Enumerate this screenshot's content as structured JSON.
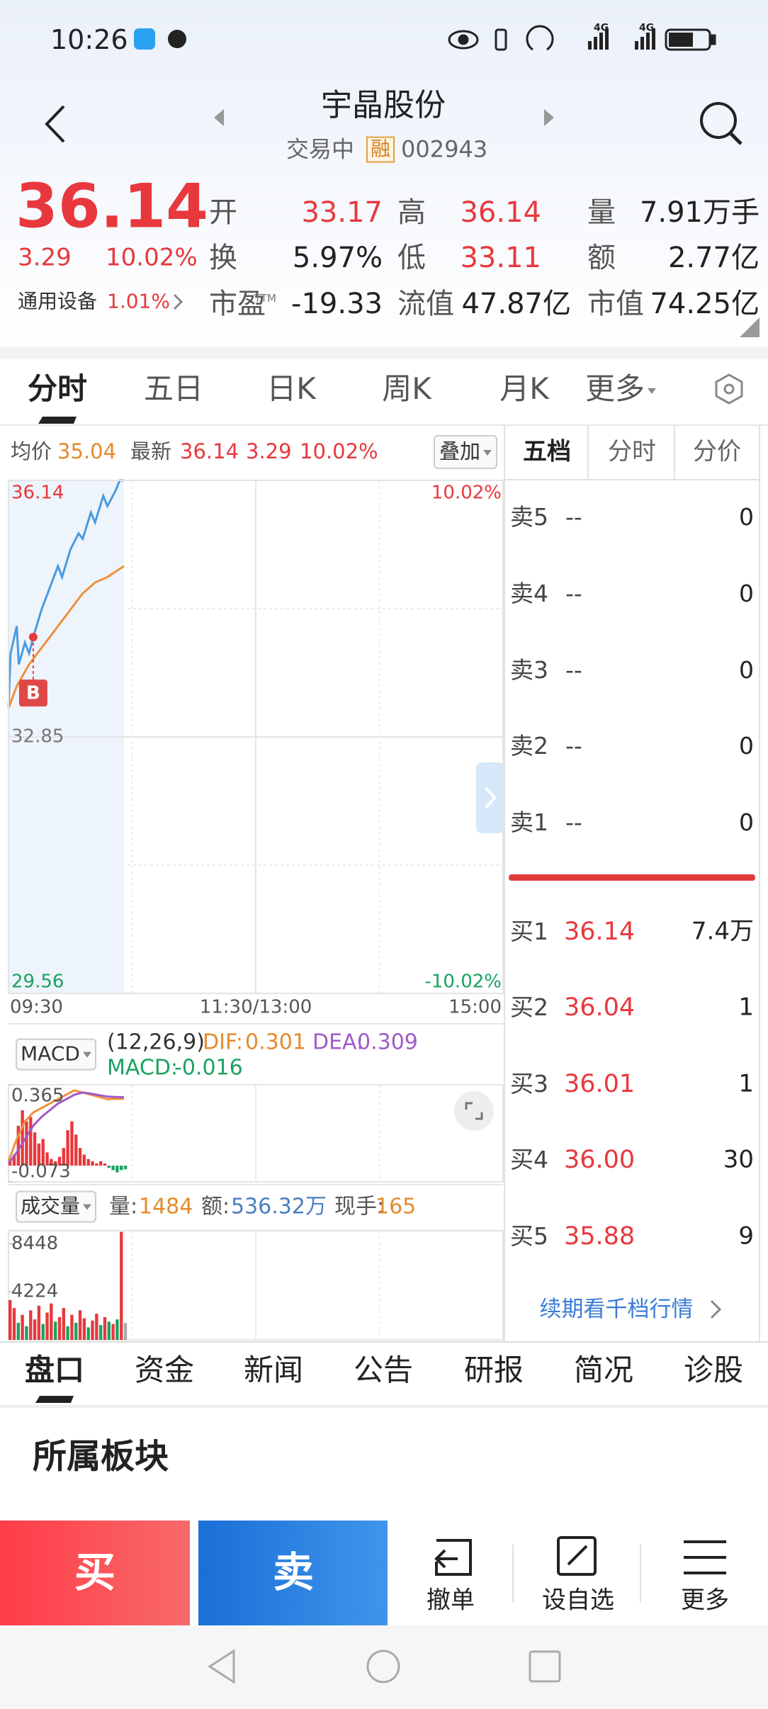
{
  "status_bar": {
    "time": "10:26",
    "network": [
      "4G",
      "4G"
    ]
  },
  "header": {
    "title": "宇晶股份",
    "status": "交易中",
    "badge": "融",
    "code": "002943"
  },
  "quote": {
    "price": "36.14",
    "change": "3.29",
    "change_pct": "10.02%",
    "sector": "通用设备",
    "sector_pct": "1.01%",
    "stats": [
      {
        "label": "开",
        "value": "33.17"
      },
      {
        "label": "高",
        "value": "36.14"
      },
      {
        "label": "量",
        "value": "7.91万手"
      },
      {
        "label": "换",
        "value": "5.97%"
      },
      {
        "label": "低",
        "value": "33.11"
      },
      {
        "label": "额",
        "value": "2.77亿"
      },
      {
        "label": "市盈",
        "label_sup": "TTM",
        "value": "-19.33"
      },
      {
        "label": "流值",
        "value": "47.87亿"
      },
      {
        "label": "市值",
        "value": "74.25亿"
      }
    ]
  },
  "period_tabs": [
    "分时",
    "五日",
    "日K",
    "周K",
    "月K",
    "更多"
  ],
  "intraday_header": {
    "avg_label": "均价",
    "avg": "35.04",
    "last_label": "最新",
    "last": "36.14",
    "change": "3.29",
    "change_pct": "10.02%",
    "overlay": "叠加"
  },
  "macd_header": {
    "selector": "MACD",
    "params": "(12,26,9)",
    "dif": {
      "label": "DIF:",
      "value": "0.301"
    },
    "dea": {
      "label": "DEA:",
      "value": "0.309"
    },
    "macd": {
      "label": "MACD:",
      "value": "-0.016"
    }
  },
  "volume_header": {
    "selector": "成交量",
    "volume": {
      "label": "量:",
      "value": "1484"
    },
    "amount": {
      "label": "额:",
      "value": "536.32万"
    },
    "last_hand": {
      "label": "现手:",
      "value": "165"
    }
  },
  "order_book": {
    "tabs": [
      "五档",
      "分时",
      "分价"
    ],
    "asks": [
      {
        "label": "卖5",
        "price": "--",
        "volume": "0"
      },
      {
        "label": "卖4",
        "price": "--",
        "volume": "0"
      },
      {
        "label": "卖3",
        "price": "--",
        "volume": "0"
      },
      {
        "label": "卖2",
        "price": "--",
        "volume": "0"
      },
      {
        "label": "卖1",
        "price": "--",
        "volume": "0"
      }
    ],
    "bids": [
      {
        "label": "买1",
        "price": "36.14",
        "volume": "7.4万"
      },
      {
        "label": "买2",
        "price": "36.04",
        "volume": "1"
      },
      {
        "label": "买3",
        "price": "36.01",
        "volume": "1"
      },
      {
        "label": "买4",
        "price": "36.00",
        "volume": "30"
      },
      {
        "label": "买5",
        "price": "35.88",
        "volume": "9"
      }
    ],
    "more": "续期看千档行情"
  },
  "info_tabs": [
    "盘口",
    "资金",
    "新闻",
    "公告",
    "研报",
    "简况",
    "诊股"
  ],
  "section_title": "所属板块",
  "actions": {
    "buy": "买",
    "sell": "卖",
    "tools": [
      "撤单",
      "设自选",
      "更多"
    ]
  },
  "chart_data": [
    {
      "type": "line",
      "xlim": [
        0,
        240
      ],
      "xticks": [
        {
          "value": 0,
          "label": "09:30"
        },
        {
          "value": 120,
          "label": "11:30/13:00"
        },
        {
          "value": 240,
          "label": "15:00"
        }
      ],
      "ylim": [
        29.56,
        36.14
      ],
      "yticks": [
        29.56,
        32.85,
        36.14
      ],
      "y2lim": [
        -10.02,
        10.02
      ],
      "y2ticks": [
        {
          "value": -10.02,
          "label": "-10.02%"
        },
        {
          "value": 10.02,
          "label": "10.02%"
        }
      ],
      "series": [
        {
          "color": "#4a9be0",
          "x": [
            0,
            1,
            4,
            5,
            8,
            10,
            12,
            16,
            20,
            24,
            26,
            30,
            34,
            36,
            40,
            42,
            46,
            48,
            52,
            54,
            56
          ],
          "values": [
            33.22,
            33.92,
            34.27,
            33.78,
            34.06,
            33.92,
            34.13,
            34.48,
            34.76,
            35.04,
            34.9,
            35.25,
            35.46,
            35.39,
            35.73,
            35.6,
            35.94,
            35.81,
            36.01,
            36.14,
            36.14
          ]
        },
        {
          "color": "#f0903a",
          "x": [
            0,
            4,
            10,
            16,
            20,
            26,
            30,
            36,
            42,
            48,
            52,
            56
          ],
          "values": [
            33.22,
            33.5,
            33.78,
            33.99,
            34.13,
            34.34,
            34.48,
            34.69,
            34.83,
            34.9,
            34.97,
            35.04
          ]
        }
      ],
      "annotations": [
        {
          "text": "B",
          "x": 12,
          "y": 34.13
        }
      ]
    },
    {
      "type": "bar",
      "xlim": [
        0,
        240
      ],
      "ylim": [
        -0.073,
        0.365
      ],
      "yticks": [
        -0.073,
        0.365
      ],
      "colors": {
        "up": "#e8383d",
        "down": "#1aa260"
      },
      "x": [
        0,
        2,
        4,
        6,
        8,
        10,
        12,
        14,
        16,
        18,
        20,
        22,
        24,
        26,
        28,
        30,
        32,
        34,
        36,
        38,
        40,
        42,
        44,
        46,
        48,
        50,
        52,
        54,
        56
      ],
      "values": [
        0.02,
        0.05,
        0.18,
        0.25,
        0.2,
        0.22,
        0.15,
        0.1,
        0.12,
        0.06,
        0.03,
        0.02,
        0.04,
        0.08,
        0.16,
        0.2,
        0.14,
        0.08,
        0.05,
        0.03,
        0.02,
        0.01,
        0.02,
        0.01,
        -0.01,
        -0.02,
        -0.03,
        -0.02,
        -0.016
      ],
      "series": [
        {
          "color": "#f0903a",
          "x": [
            0,
            4,
            8,
            12,
            16,
            20,
            24,
            28,
            32,
            36,
            40,
            44,
            48,
            52,
            56
          ],
          "values": [
            0.02,
            0.12,
            0.2,
            0.24,
            0.26,
            0.28,
            0.3,
            0.32,
            0.34,
            0.33,
            0.32,
            0.31,
            0.3,
            0.302,
            0.301
          ]
        },
        {
          "color": "#a05ac8",
          "x": [
            0,
            4,
            8,
            12,
            16,
            20,
            24,
            28,
            32,
            36,
            40,
            44,
            48,
            52,
            56
          ],
          "values": [
            0.01,
            0.06,
            0.12,
            0.18,
            0.22,
            0.25,
            0.28,
            0.3,
            0.32,
            0.33,
            0.325,
            0.318,
            0.312,
            0.31,
            0.309
          ]
        }
      ]
    },
    {
      "type": "bar",
      "xlim": [
        0,
        240
      ],
      "ylim": [
        0,
        9600
      ],
      "yticks": [
        4224,
        8448
      ],
      "x": [
        0,
        2,
        4,
        6,
        8,
        10,
        12,
        14,
        16,
        18,
        20,
        22,
        24,
        26,
        28,
        30,
        32,
        34,
        36,
        38,
        40,
        42,
        44,
        46,
        48,
        50,
        52,
        54,
        56
      ],
      "values": [
        3500,
        2800,
        1500,
        2200,
        1200,
        2600,
        1800,
        3000,
        1400,
        2400,
        3200,
        1600,
        2000,
        2800,
        1200,
        2200,
        1500,
        2600,
        1900,
        1100,
        1700,
        2300,
        1300,
        2000,
        1600,
        1400,
        1800,
        9500,
        1484
      ],
      "bar_colors": [
        "#e8383d",
        "#e8383d",
        "#1aa260",
        "#e8383d",
        "#1aa260",
        "#e8383d",
        "#e8383d",
        "#e8383d",
        "#1aa260",
        "#e8383d",
        "#e8383d",
        "#1aa260",
        "#e8383d",
        "#e8383d",
        "#1aa260",
        "#e8383d",
        "#1aa260",
        "#e8383d",
        "#e8383d",
        "#1aa260",
        "#e8383d",
        "#e8383d",
        "#1aa260",
        "#e8383d",
        "#1aa260",
        "#e8383d",
        "#1aa260",
        "#e8383d",
        "#aaaaaa"
      ]
    }
  ]
}
